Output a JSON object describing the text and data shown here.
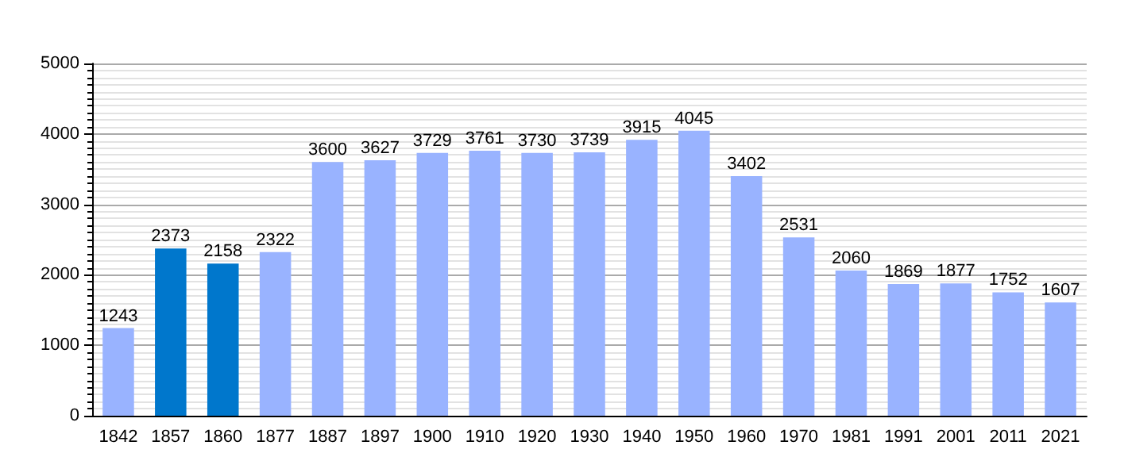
{
  "chart_data": {
    "type": "bar",
    "categories": [
      "1842",
      "1857",
      "1860",
      "1877",
      "1887",
      "1897",
      "1900",
      "1910",
      "1920",
      "1930",
      "1940",
      "1950",
      "1960",
      "1970",
      "1981",
      "1991",
      "2001",
      "2011",
      "2021"
    ],
    "values": [
      1243,
      2373,
      2158,
      2322,
      3600,
      3627,
      3729,
      3761,
      3730,
      3739,
      3915,
      4045,
      3402,
      2531,
      2060,
      1869,
      1877,
      1752,
      1607
    ],
    "colors": [
      "#99b3ff",
      "#0077cc",
      "#0077cc",
      "#99b3ff",
      "#99b3ff",
      "#99b3ff",
      "#99b3ff",
      "#99b3ff",
      "#99b3ff",
      "#99b3ff",
      "#99b3ff",
      "#99b3ff",
      "#99b3ff",
      "#99b3ff",
      "#99b3ff",
      "#99b3ff",
      "#99b3ff",
      "#99b3ff",
      "#99b3ff"
    ],
    "ylim": [
      0,
      5000
    ],
    "yticks": [
      0,
      1000,
      2000,
      3000,
      4000,
      5000
    ],
    "grid": "y",
    "data_labels": true
  }
}
